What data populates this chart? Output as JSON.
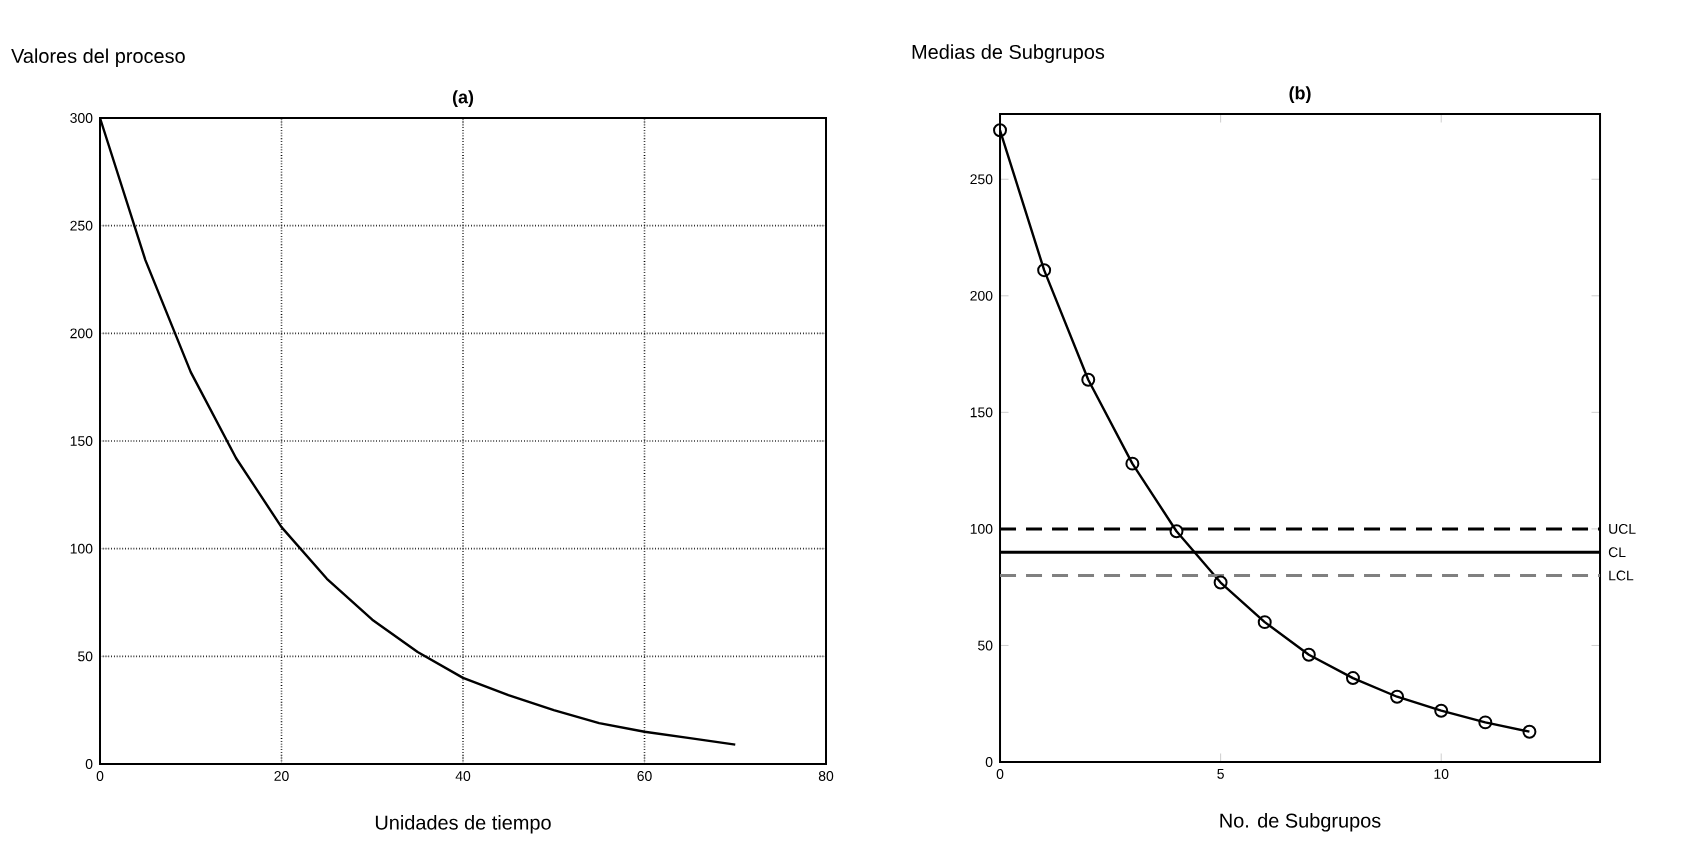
{
  "chart_data": [
    {
      "type": "line",
      "title": "(a)",
      "ylabel": "Valores del proceso",
      "xlabel": "Unidades de tiempo",
      "x": [
        0,
        5,
        10,
        15,
        20,
        25,
        30,
        35,
        40,
        45,
        50,
        55,
        60,
        65,
        70
      ],
      "series": [
        {
          "color": "#000000",
          "values": [
            300,
            234,
            182,
            142,
            110,
            86,
            67,
            52,
            40,
            32,
            25,
            19,
            15,
            12,
            9
          ]
        }
      ],
      "xlim": [
        0,
        80
      ],
      "ylim": [
        0,
        300
      ],
      "xticks": [
        0,
        20,
        40,
        60,
        80
      ],
      "yticks": [
        0,
        50,
        100,
        150,
        200,
        250,
        300
      ],
      "grid": true
    },
    {
      "type": "line",
      "title": "(b)",
      "ylabel": "Medias de Subgrupos",
      "xlabel": "No. de Subgrupos",
      "x": [
        0,
        1,
        2,
        3,
        4,
        5,
        6,
        7,
        8,
        9,
        10,
        11,
        12
      ],
      "series": [
        {
          "color": "#000000",
          "values": [
            271,
            211,
            164,
            128,
            99,
            77,
            60,
            46,
            36,
            28,
            22,
            17,
            13
          ]
        }
      ],
      "marker": "circle",
      "ref_lines": [
        {
          "axis": "y",
          "value": 100,
          "label": "UCL",
          "color": "#000000",
          "line_style": "dashed"
        },
        {
          "axis": "y",
          "value": 90,
          "label": "CL",
          "color": "#000000",
          "line_style": "solid"
        },
        {
          "axis": "y",
          "value": 80,
          "label": "LCL",
          "color": "#808080",
          "line_style": "dashed"
        }
      ],
      "xlim": [
        0,
        13.6
      ],
      "ylim": [
        0,
        278
      ],
      "xticks": [
        0,
        5,
        10
      ],
      "yticks": [
        0,
        50,
        100,
        150,
        200,
        250
      ]
    }
  ]
}
